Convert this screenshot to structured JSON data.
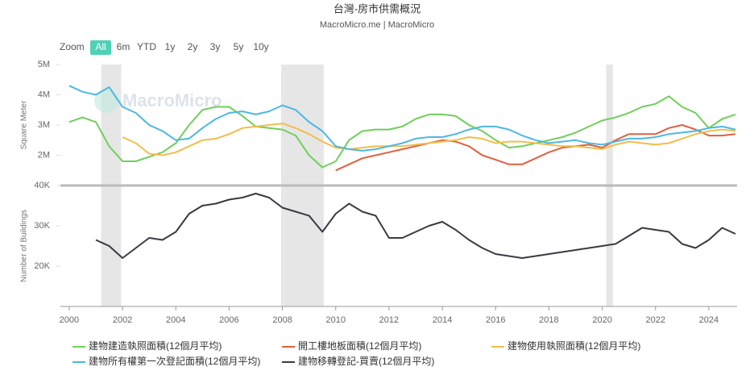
{
  "header": {
    "title": "台灣-房市供需概況",
    "subtitle": "MacroMicro.me | MacroMicro"
  },
  "range_selector": {
    "label": "Zoom",
    "buttons": [
      "All",
      "6m",
      "YTD",
      "1y",
      "2y",
      "3y",
      "5y",
      "10y"
    ],
    "selected": 0
  },
  "watermark": "MacroMicro",
  "chart_data": [
    {
      "type": "line",
      "y_label": "Square Meter",
      "x": [
        2000,
        2000.5,
        2001,
        2001.5,
        2002,
        2002.5,
        2003,
        2003.5,
        2004,
        2004.5,
        2005,
        2005.5,
        2006,
        2006.5,
        2007,
        2007.5,
        2008,
        2008.5,
        2009,
        2009.5,
        2010,
        2010.5,
        2011,
        2011.5,
        2012,
        2012.5,
        2013,
        2013.5,
        2014,
        2014.5,
        2015,
        2015.5,
        2016,
        2016.5,
        2017,
        2017.5,
        2018,
        2018.5,
        2019,
        2019.5,
        2020,
        2020.5,
        2021,
        2021.5,
        2022,
        2022.5,
        2023,
        2023.5,
        2024,
        2024.5,
        2025
      ],
      "xlim": [
        1999.67,
        2025.06
      ],
      "ylim": [
        1000000,
        5000000
      ],
      "yticks": [
        {
          "value": 2000000,
          "label": "2M"
        },
        {
          "value": 3000000,
          "label": "3M"
        },
        {
          "value": 4000000,
          "label": "4M"
        },
        {
          "value": 5000000,
          "label": "5M"
        }
      ],
      "shaded_periods": [
        [
          2001.2,
          2001.95
        ],
        [
          2007.95,
          2009.55
        ],
        [
          2020.15,
          2020.4
        ]
      ],
      "series": [
        {
          "name": "建物建造執照面積(12個月平均)",
          "color": "#6fcf5b",
          "values": [
            3100000,
            3250000,
            3100000,
            2300000,
            1800000,
            1800000,
            1950000,
            2100000,
            2400000,
            3000000,
            3500000,
            3600000,
            3600000,
            3300000,
            2950000,
            2900000,
            2850000,
            2650000,
            2000000,
            1600000,
            1800000,
            2500000,
            2800000,
            2850000,
            2850000,
            2950000,
            3200000,
            3350000,
            3350000,
            3300000,
            3000000,
            2800000,
            2500000,
            2250000,
            2300000,
            2400000,
            2500000,
            2600000,
            2750000,
            2950000,
            3150000,
            3250000,
            3400000,
            3600000,
            3700000,
            3950000,
            3600000,
            3400000,
            2900000,
            3200000,
            3350000
          ]
        },
        {
          "name": "開工樓地板面積(12個月平均)",
          "color": "#e0603f",
          "values": [
            null,
            null,
            null,
            null,
            null,
            null,
            null,
            null,
            null,
            null,
            null,
            null,
            null,
            null,
            null,
            null,
            null,
            null,
            null,
            null,
            1500000,
            1700000,
            1900000,
            2000000,
            2100000,
            2200000,
            2300000,
            2400000,
            2500000,
            2450000,
            2300000,
            2000000,
            1850000,
            1700000,
            1700000,
            1900000,
            2100000,
            2250000,
            2300000,
            2350000,
            2250000,
            2500000,
            2700000,
            2700000,
            2700000,
            2900000,
            3000000,
            2850000,
            2650000,
            2650000,
            2700000
          ]
        },
        {
          "name": "建物使用執照面積(12個月平均)",
          "color": "#f2bd4c",
          "values": [
            null,
            null,
            null,
            null,
            2600000,
            2400000,
            2050000,
            2000000,
            2100000,
            2300000,
            2500000,
            2550000,
            2700000,
            2900000,
            2950000,
            3000000,
            3050000,
            2900000,
            2700000,
            2450000,
            2250000,
            2200000,
            2250000,
            2300000,
            2300000,
            2300000,
            2350000,
            2400000,
            2450000,
            2500000,
            2600000,
            2550000,
            2400000,
            2450000,
            2450000,
            2400000,
            2350000,
            2300000,
            2300000,
            2250000,
            2200000,
            2350000,
            2450000,
            2400000,
            2350000,
            2400000,
            2550000,
            2700000,
            2800000,
            2850000,
            2800000
          ]
        },
        {
          "name": "建物所有權第一次登記面積(12個月平均)",
          "color": "#4db8e0",
          "values": [
            4300000,
            4100000,
            4000000,
            4250000,
            3600000,
            3400000,
            3000000,
            2800000,
            2500000,
            2550000,
            2900000,
            3200000,
            3400000,
            3450000,
            3350000,
            3450000,
            3650000,
            3500000,
            3100000,
            2800000,
            2300000,
            2200000,
            2150000,
            2200000,
            2300000,
            2400000,
            2550000,
            2600000,
            2600000,
            2700000,
            2850000,
            2950000,
            2950000,
            2850000,
            2650000,
            2500000,
            2400000,
            2450000,
            2500000,
            2400000,
            2350000,
            2450000,
            2550000,
            2550000,
            2600000,
            2700000,
            2750000,
            2800000,
            2900000,
            2950000,
            2850000
          ]
        }
      ]
    },
    {
      "type": "line",
      "y_label": "Number of Buildings",
      "x": [
        2000,
        2000.5,
        2001,
        2001.5,
        2002,
        2002.5,
        2003,
        2003.5,
        2004,
        2004.5,
        2005,
        2005.5,
        2006,
        2006.5,
        2007,
        2007.5,
        2008,
        2008.5,
        2009,
        2009.5,
        2010,
        2010.5,
        2011,
        2011.5,
        2012,
        2012.5,
        2013,
        2013.5,
        2014,
        2014.5,
        2015,
        2015.5,
        2016,
        2016.5,
        2017,
        2017.5,
        2018,
        2018.5,
        2019,
        2019.5,
        2020,
        2020.5,
        2021,
        2021.5,
        2022,
        2022.5,
        2023,
        2023.5,
        2024,
        2024.5,
        2025
      ],
      "xlim": [
        1999.67,
        2025.06
      ],
      "xticks": [
        2000,
        2002,
        2004,
        2006,
        2008,
        2010,
        2012,
        2014,
        2016,
        2018,
        2020,
        2022,
        2024
      ],
      "ylim": [
        10000,
        40000
      ],
      "yticks": [
        {
          "value": 20000,
          "label": "20K"
        },
        {
          "value": 30000,
          "label": "30K"
        },
        {
          "value": 40000,
          "label": "40K"
        }
      ],
      "series": [
        {
          "name": "建物移轉登記-買賣(12個月平均)",
          "color": "#3a3a44",
          "values": [
            null,
            null,
            26500,
            25000,
            22000,
            24500,
            27000,
            26500,
            28500,
            33000,
            35000,
            35500,
            36500,
            37000,
            38000,
            37000,
            34500,
            33500,
            32500,
            28500,
            33000,
            35500,
            33500,
            32500,
            27000,
            27000,
            28500,
            30000,
            31000,
            29000,
            26500,
            24500,
            23000,
            22500,
            22000,
            22500,
            23000,
            23500,
            24000,
            24500,
            25000,
            25500,
            27500,
            29500,
            29000,
            28500,
            25500,
            24500,
            26500,
            29500,
            28000
          ]
        }
      ]
    }
  ]
}
